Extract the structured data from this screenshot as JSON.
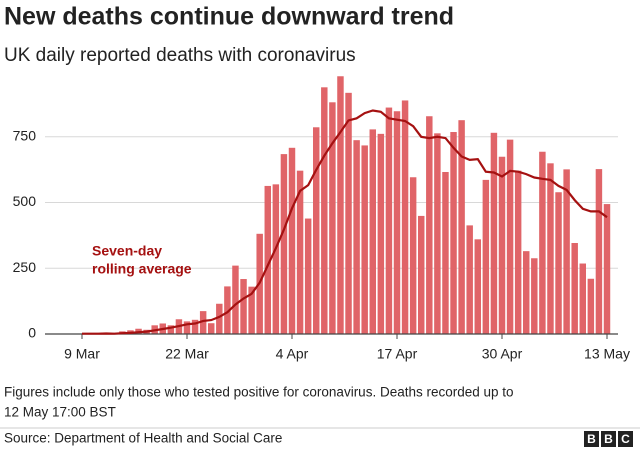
{
  "chart_data": {
    "type": "bar",
    "title": "New deaths continue downward trend",
    "subtitle": "UK daily reported deaths with coronavirus",
    "categories": [
      "9 Mar",
      null,
      null,
      null,
      null,
      null,
      null,
      null,
      null,
      null,
      null,
      null,
      null,
      "22 Mar",
      null,
      null,
      null,
      null,
      null,
      null,
      null,
      null,
      null,
      null,
      null,
      null,
      "4 Apr",
      null,
      null,
      null,
      null,
      null,
      null,
      null,
      null,
      null,
      null,
      null,
      null,
      "17 Apr",
      null,
      null,
      null,
      null,
      null,
      null,
      null,
      null,
      null,
      null,
      null,
      null,
      "30 Apr",
      null,
      null,
      null,
      null,
      null,
      null,
      null,
      null,
      null,
      null,
      null,
      null,
      "13 May"
    ],
    "values": [
      1,
      1,
      2,
      2,
      1,
      10,
      14,
      20,
      16,
      33,
      40,
      33,
      56,
      48,
      54,
      87,
      41,
      115,
      181,
      260,
      209,
      180,
      381,
      563,
      569,
      684,
      708,
      621,
      439,
      786,
      938,
      881,
      980,
      917,
      737,
      717,
      778,
      761,
      861,
      847,
      888,
      596,
      449,
      828,
      763,
      616,
      768,
      813,
      413,
      360,
      586,
      765,
      674,
      739,
      621,
      315,
      288,
      693,
      649,
      539,
      626,
      346,
      268,
      210,
      627,
      494
    ],
    "color": "#e06468",
    "line_values": [
      1,
      1,
      1,
      2,
      1,
      3,
      4,
      7,
      9,
      14,
      19,
      24,
      30,
      37,
      40,
      50,
      53,
      65,
      83,
      112,
      135,
      153,
      195,
      261,
      326,
      397,
      478,
      544,
      566,
      624,
      678,
      725,
      768,
      812,
      820,
      840,
      850,
      845,
      820,
      815,
      810,
      790,
      750,
      745,
      750,
      745,
      708,
      675,
      662,
      665,
      617,
      614,
      599,
      620,
      617,
      608,
      595,
      590,
      586,
      563,
      548,
      509,
      476,
      466,
      466,
      444
    ],
    "line_color": "#a51111",
    "annotation": [
      "Seven-day",
      "rolling average"
    ],
    "ylim": [
      0,
      1000
    ],
    "yticks": [
      0,
      250,
      500,
      750
    ],
    "grid": true
  },
  "footer": {
    "note": [
      "Figures include only those who tested positive for coronavirus. Deaths recorded up to",
      "12 May 17:00 BST"
    ],
    "source": "Source: Department of Health and Social Care",
    "logo": [
      "B",
      "B",
      "C"
    ]
  }
}
